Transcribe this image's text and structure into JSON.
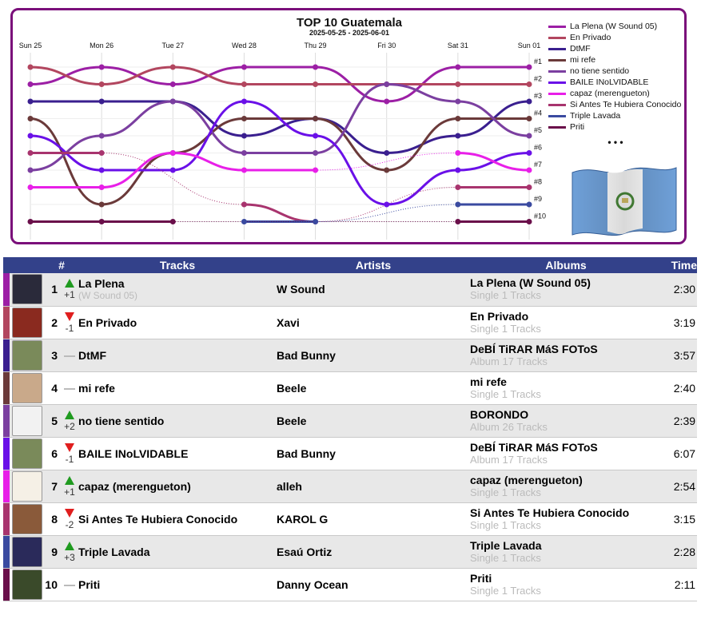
{
  "chart_data": {
    "type": "line",
    "title": "TOP 10 Guatemala",
    "subtitle": "2025-05-25 - 2025-06-01",
    "x": [
      "Sun 25",
      "Mon 26",
      "Tue 27",
      "Wed 28",
      "Thu 29",
      "Fri 30",
      "Sat 31",
      "Sun 01"
    ],
    "y_ticks": [
      "#1",
      "#2",
      "#3",
      "#4",
      "#5",
      "#6",
      "#7",
      "#8",
      "#9",
      "#10"
    ],
    "ylim": [
      1,
      10
    ],
    "y_inverted": true,
    "legend_position": "right",
    "legend_more": "• • •",
    "series": [
      {
        "name": "La Plena (W Sound 05)",
        "color": "#9c1fa5",
        "values": [
          2,
          1,
          2,
          1,
          1,
          3,
          1,
          1
        ]
      },
      {
        "name": "En Privado",
        "color": "#b2465f",
        "values": [
          1,
          2,
          1,
          2,
          2,
          2,
          2,
          2
        ]
      },
      {
        "name": "DtMF",
        "color": "#3a1f8f",
        "values": [
          3,
          3,
          3,
          5,
          4,
          6,
          5,
          3
        ]
      },
      {
        "name": "mi refe",
        "color": "#6b3a3a",
        "values": [
          4,
          9,
          6,
          4,
          4,
          7,
          4,
          4
        ]
      },
      {
        "name": "no tiene sentido",
        "color": "#7b3fa0",
        "values": [
          7,
          5,
          3,
          6,
          6,
          2,
          3,
          5
        ]
      },
      {
        "name": "BAILE INoLVIDABLE",
        "color": "#6a10e8",
        "values": [
          5,
          7,
          7,
          3,
          5,
          9,
          7,
          6
        ]
      },
      {
        "name": "capaz (merengueton)",
        "color": "#e81fe8",
        "values": [
          8,
          8,
          6,
          7,
          7,
          null,
          6,
          7
        ]
      },
      {
        "name": "Si Antes Te Hubiera Conocido",
        "color": "#a8346e",
        "values": [
          6,
          6,
          null,
          9,
          10,
          null,
          8,
          8
        ]
      },
      {
        "name": "Triple Lavada",
        "color": "#3a4aa0",
        "values": [
          null,
          null,
          null,
          10,
          10,
          null,
          9,
          9
        ]
      },
      {
        "name": "Priti",
        "color": "#6a0f4a",
        "values": [
          10,
          10,
          10,
          null,
          null,
          null,
          10,
          10
        ]
      }
    ]
  },
  "table": {
    "headers": {
      "num": "#",
      "tracks": "Tracks",
      "artists": "Artists",
      "albums": "Albums",
      "time": "Time"
    },
    "rows": [
      {
        "rank": "1",
        "move": "up",
        "delta": "+1",
        "track": "La Plena",
        "track_sub": "(W Sound 05)",
        "artist": "W Sound",
        "album": "La Plena (W Sound 05)",
        "album_sub": "Single 1 Tracks",
        "time": "2:30",
        "color": "#9c1fa5",
        "cover": "#2a2a3a"
      },
      {
        "rank": "2",
        "move": "down",
        "delta": "-1",
        "track": "En Privado",
        "track_sub": "",
        "artist": "Xavi",
        "album": "En Privado",
        "album_sub": "Single 1 Tracks",
        "time": "3:19",
        "color": "#b2465f",
        "cover": "#8a2a1f"
      },
      {
        "rank": "3",
        "move": "same",
        "delta": "",
        "track": "DtMF",
        "track_sub": "",
        "artist": "Bad Bunny",
        "album": "DeBÍ TiRAR MáS FOToS",
        "album_sub": "Album 17 Tracks",
        "time": "3:57",
        "color": "#3a1f8f",
        "cover": "#7a8a5a"
      },
      {
        "rank": "4",
        "move": "same",
        "delta": "",
        "track": "mi refe",
        "track_sub": "",
        "artist": "Beele",
        "album": "mi refe",
        "album_sub": "Single 1 Tracks",
        "time": "2:40",
        "color": "#6b3a3a",
        "cover": "#c9a98a"
      },
      {
        "rank": "5",
        "move": "up",
        "delta": "+2",
        "track": "no tiene sentido",
        "track_sub": "",
        "artist": "Beele",
        "album": "BORONDO",
        "album_sub": "Album 26 Tracks",
        "time": "2:39",
        "color": "#7b3fa0",
        "cover": "#f2f2f2"
      },
      {
        "rank": "6",
        "move": "down",
        "delta": "-1",
        "track": "BAILE INoLVIDABLE",
        "track_sub": "",
        "artist": "Bad Bunny",
        "album": "DeBÍ TiRAR MáS FOToS",
        "album_sub": "Album 17 Tracks",
        "time": "6:07",
        "color": "#6a10e8",
        "cover": "#7a8a5a"
      },
      {
        "rank": "7",
        "move": "up",
        "delta": "+1",
        "track": "capaz (merengueton)",
        "track_sub": "",
        "artist": "alleh",
        "album": "capaz (merengueton)",
        "album_sub": "Single 1 Tracks",
        "time": "2:54",
        "color": "#e81fe8",
        "cover": "#f5f0e6"
      },
      {
        "rank": "8",
        "move": "down",
        "delta": "-2",
        "track": "Si Antes Te Hubiera Conocido",
        "track_sub": "",
        "artist": "KAROL G",
        "album": "Si Antes Te Hubiera Conocido",
        "album_sub": "Single 1 Tracks",
        "time": "3:15",
        "color": "#a8346e",
        "cover": "#8a5a3a"
      },
      {
        "rank": "9",
        "move": "up",
        "delta": "+3",
        "track": "Triple Lavada",
        "track_sub": "",
        "artist": "Esaú Ortiz",
        "album": "Triple Lavada",
        "album_sub": "Single 1 Tracks",
        "time": "2:28",
        "color": "#3a4aa0",
        "cover": "#2a2a5a"
      },
      {
        "rank": "10",
        "move": "same",
        "delta": "",
        "track": "Priti",
        "track_sub": "",
        "artist": "Danny Ocean",
        "album": "Priti",
        "album_sub": "Single 1 Tracks",
        "time": "2:11",
        "color": "#6a0f4a",
        "cover": "#3a4a2a"
      }
    ]
  },
  "colors": {
    "header_bg": "#33418a",
    "frame": "#7a0f7a",
    "up": "#1f9a1f",
    "down": "#e01e1e"
  },
  "icons": {
    "flag": "guatemala-flag-icon"
  }
}
